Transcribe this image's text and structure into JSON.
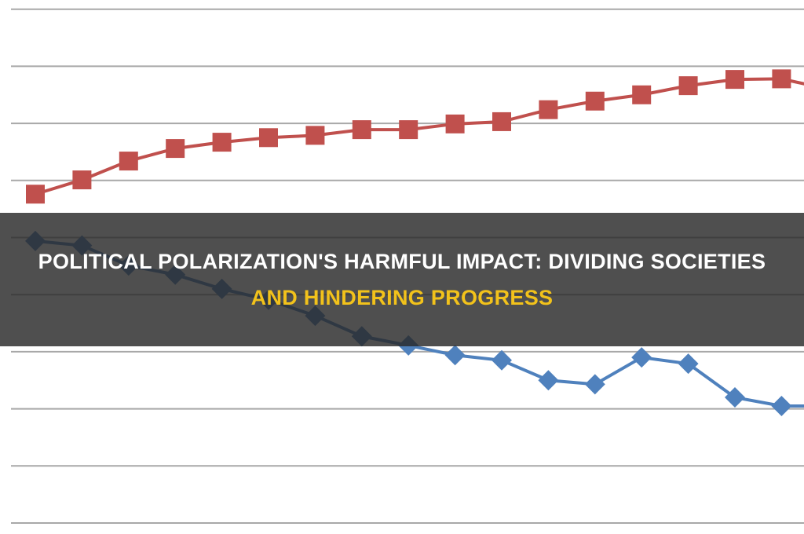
{
  "title": {
    "line1": "POLITICAL POLARIZATION'S HARMFUL IMPACT: DIVIDING SOCIETIES",
    "line2": "AND HINDERING PROGRESS"
  },
  "chart_data": {
    "type": "line",
    "title": "",
    "xlabel": "",
    "ylabel": "",
    "ylim": [
      0,
      9
    ],
    "grid": true,
    "gridlines": [
      0,
      1,
      2,
      3,
      4,
      5,
      6,
      7,
      8,
      9
    ],
    "x": [
      1,
      2,
      3,
      4,
      5,
      6,
      7,
      8,
      9,
      10,
      11,
      12,
      13,
      14,
      15,
      16,
      17,
      18
    ],
    "series": [
      {
        "name": "red",
        "color": "#c0504d",
        "marker": "square",
        "values": [
          5.76,
          6.01,
          6.34,
          6.56,
          6.67,
          6.75,
          6.79,
          6.89,
          6.89,
          6.99,
          7.03,
          7.24,
          7.39,
          7.5,
          7.66,
          7.77,
          7.78,
          7.6
        ]
      },
      {
        "name": "blue",
        "color": "#4f81bd",
        "marker": "diamond",
        "values": [
          4.94,
          4.86,
          4.51,
          4.35,
          4.1,
          3.91,
          3.63,
          3.27,
          3.11,
          2.94,
          2.85,
          2.5,
          2.43,
          2.9,
          2.79,
          2.2,
          2.05,
          2.05
        ]
      }
    ]
  }
}
